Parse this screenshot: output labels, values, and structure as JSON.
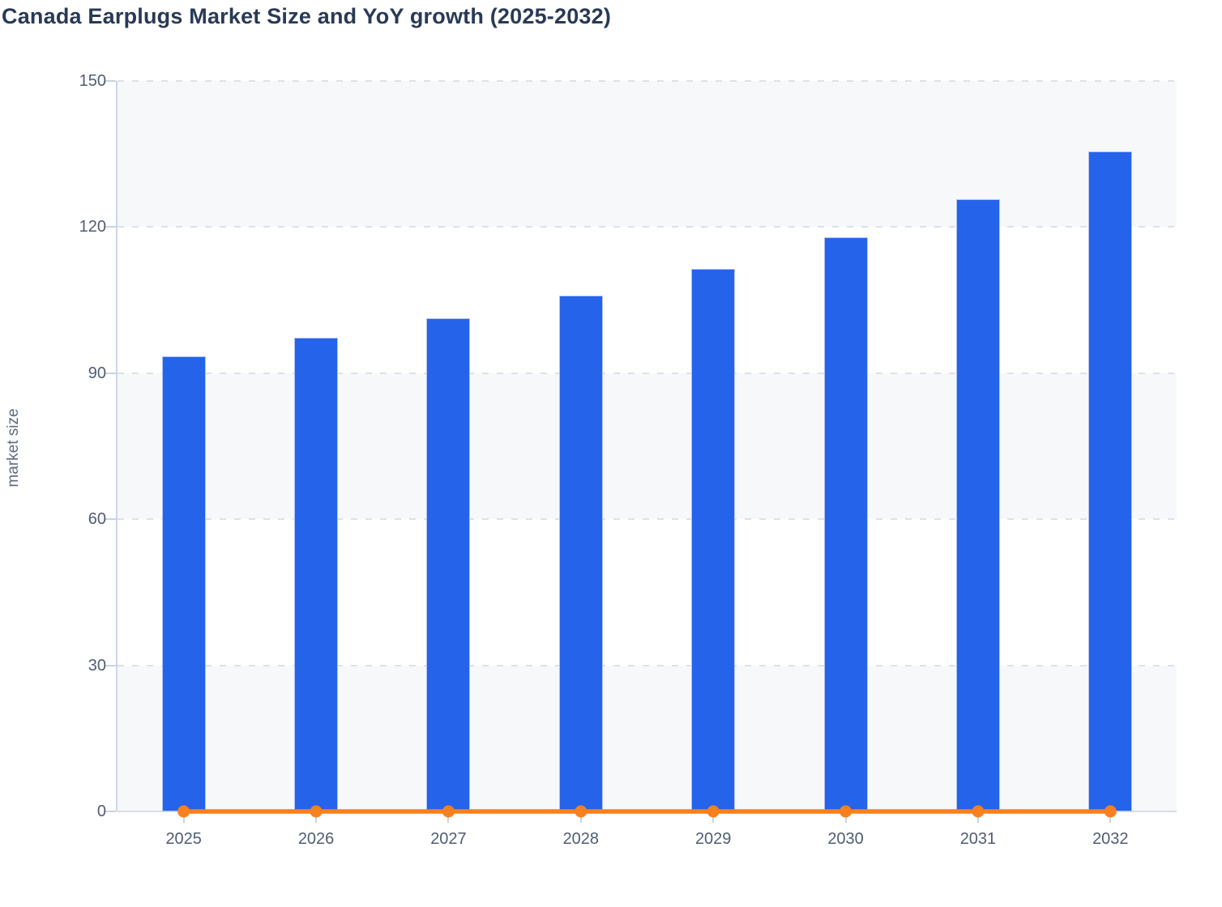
{
  "chart_data": {
    "type": "bar",
    "title": "Canada Earplugs Market Size and YoY growth (2025-2032)",
    "xlabel": "",
    "ylabel": "market size",
    "categories": [
      "2025",
      "2026",
      "2027",
      "2028",
      "2029",
      "2030",
      "2031",
      "2032"
    ],
    "series": [
      {
        "name": "market size",
        "type": "bar",
        "color": "#2563eb",
        "values": [
          93.4,
          97.3,
          101.3,
          105.9,
          111.4,
          117.9,
          125.8,
          135.5
        ]
      },
      {
        "name": "YoY growth",
        "type": "line",
        "color": "#f8801e",
        "values": [
          0,
          0,
          0,
          0,
          0,
          0,
          0,
          0
        ]
      }
    ],
    "ylim": [
      0,
      150
    ],
    "yticks": [
      0,
      30,
      60,
      90,
      120,
      150
    ],
    "grid": "dashed-horizontal",
    "plot_bands": "alternating horizontal bands between y ticks",
    "legend": "none"
  },
  "colors": {
    "bar_fill": "#2563eb",
    "line_stroke": "#f8801e",
    "band_fill": "#f7f8fa",
    "gridline": "#dde1e7",
    "y_axis_line": "#ccd6ea",
    "x_axis_line": "#d8dde5",
    "tick_mark": "#c9d3e2",
    "axis_text": "#505d72",
    "title_text": "#293a55",
    "y_axis_title_text": "#5d6b81"
  }
}
